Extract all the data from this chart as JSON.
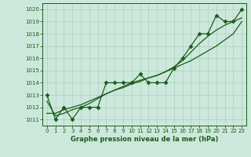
{
  "x": [
    0,
    1,
    2,
    3,
    4,
    5,
    6,
    7,
    8,
    9,
    10,
    11,
    12,
    13,
    14,
    15,
    16,
    17,
    18,
    19,
    20,
    21,
    22,
    23
  ],
  "y_main": [
    1013,
    1011,
    1012,
    1011,
    1012,
    1012,
    1012,
    1014,
    1014,
    1014,
    1014,
    1014.7,
    1014,
    1014,
    1014,
    1015.2,
    1016,
    1017,
    1018,
    1018,
    1019.5,
    1019,
    1019,
    1020
  ],
  "y_trend1": [
    1011.5,
    1011.5,
    1011.8,
    1012,
    1012.2,
    1012.5,
    1012.8,
    1013.1,
    1013.4,
    1013.6,
    1013.9,
    1014.1,
    1014.4,
    1014.6,
    1014.9,
    1015.2,
    1015.5,
    1015.8,
    1016.2,
    1016.6,
    1017.0,
    1017.5,
    1018.0,
    1019.0
  ],
  "y_trend2": [
    1012.5,
    1011.3,
    1011.5,
    1011.8,
    1012.0,
    1012.3,
    1012.7,
    1013.1,
    1013.4,
    1013.7,
    1014.0,
    1014.2,
    1014.4,
    1014.6,
    1014.9,
    1015.3,
    1015.8,
    1016.5,
    1017.2,
    1017.8,
    1018.3,
    1018.7,
    1019.0,
    1019.3
  ],
  "ylim": [
    1010.5,
    1020.5
  ],
  "yticks": [
    1011,
    1012,
    1013,
    1014,
    1015,
    1016,
    1017,
    1018,
    1019,
    1020
  ],
  "xlim": [
    -0.5,
    23.5
  ],
  "xticks": [
    0,
    1,
    2,
    3,
    4,
    5,
    6,
    7,
    8,
    9,
    10,
    11,
    12,
    13,
    14,
    15,
    16,
    17,
    18,
    19,
    20,
    21,
    22,
    23
  ],
  "xlabel": "Graphe pression niveau de la mer (hPa)",
  "line_color": "#1a5c1a",
  "bg_color": "#cce8dc",
  "grid_color": "#a8c8b8",
  "marker": "D",
  "marker_size": 2.5,
  "lw_main": 0.9,
  "lw_trend": 0.9,
  "tick_fontsize": 5.0,
  "xlabel_fontsize": 6.0
}
